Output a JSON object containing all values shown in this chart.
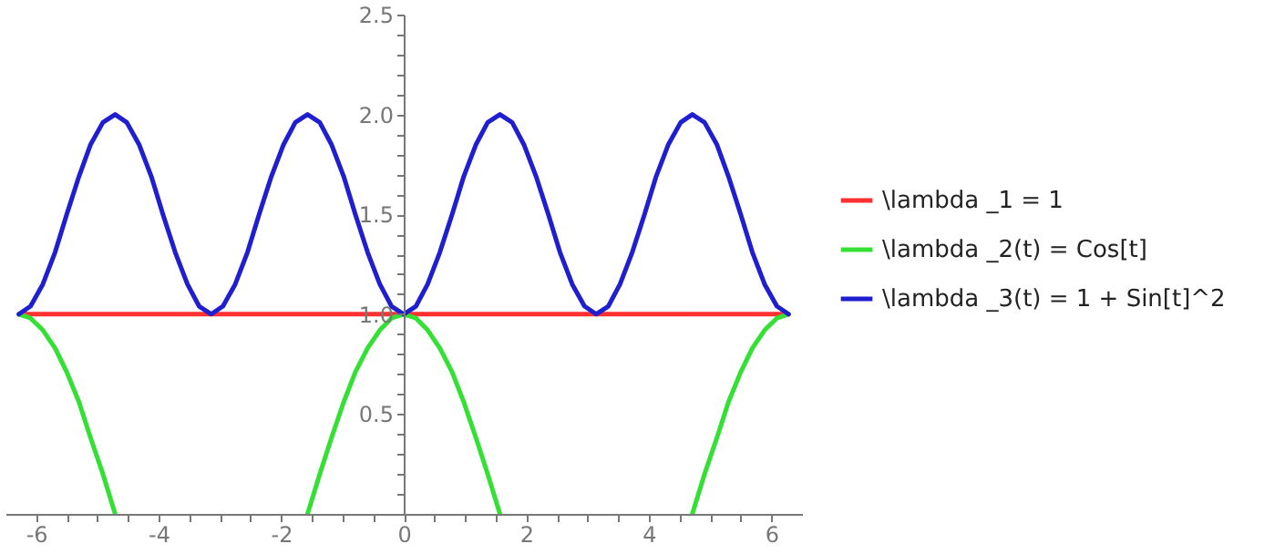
{
  "chart_data": {
    "type": "line",
    "legend": "right",
    "line_style": "solid",
    "marker": "none",
    "grid": false,
    "xlim": [
      -6.5,
      6.5
    ],
    "ylim": [
      0,
      2.5
    ],
    "xticks": [
      -6,
      {
        "value": -5.5,
        "label": null
      },
      {
        "value": -5,
        "label": null
      },
      {
        "value": -4.5,
        "label": null
      },
      -4,
      {
        "value": -3.5,
        "label": null
      },
      {
        "value": -3,
        "label": null
      },
      {
        "value": -2.5,
        "label": null
      },
      -2,
      {
        "value": -1.5,
        "label": null
      },
      {
        "value": -1,
        "label": null
      },
      {
        "value": -0.5,
        "label": null
      },
      0,
      {
        "value": 0.5,
        "label": null
      },
      {
        "value": 1,
        "label": null
      },
      {
        "value": 1.5,
        "label": null
      },
      2,
      {
        "value": 2.5,
        "label": null
      },
      {
        "value": 3,
        "label": null
      },
      {
        "value": 3.5,
        "label": null
      },
      4,
      {
        "value": 4.5,
        "label": null
      },
      {
        "value": 5,
        "label": null
      },
      {
        "value": 5.5,
        "label": null
      },
      6
    ],
    "yticks": [
      {
        "value": 0.1,
        "label": null
      },
      {
        "value": 0.2,
        "label": null
      },
      {
        "value": 0.3,
        "label": null
      },
      {
        "value": 0.4,
        "label": null
      },
      {
        "value": 0.5,
        "label": "0.5"
      },
      {
        "value": 0.6,
        "label": null
      },
      {
        "value": 0.7,
        "label": null
      },
      {
        "value": 0.8,
        "label": null
      },
      {
        "value": 0.9,
        "label": null
      },
      {
        "value": 1,
        "label": "1.0"
      },
      {
        "value": 1.1,
        "label": null
      },
      {
        "value": 1.2,
        "label": null
      },
      {
        "value": 1.3,
        "label": null
      },
      {
        "value": 1.4,
        "label": null
      },
      {
        "value": 1.5,
        "label": "1.5"
      },
      {
        "value": 1.6,
        "label": null
      },
      {
        "value": 1.7,
        "label": null
      },
      {
        "value": 1.8,
        "label": null
      },
      {
        "value": 1.9,
        "label": null
      },
      {
        "value": 2,
        "label": "2.0"
      },
      {
        "value": 2.1,
        "label": null
      },
      {
        "value": 2.2,
        "label": null
      },
      {
        "value": 2.3,
        "label": null
      },
      {
        "value": 2.4,
        "label": null
      },
      {
        "value": 2.5,
        "label": "2.5"
      }
    ],
    "x": [
      -6.28,
      -6.09,
      -5.89,
      -5.69,
      -5.5,
      -5.3,
      -5.11,
      -4.91,
      -4.71,
      -4.52,
      -4.32,
      -4.12,
      -3.93,
      -3.73,
      -3.53,
      -3.34,
      -3.14,
      -2.95,
      -2.75,
      -2.55,
      -2.36,
      -2.16,
      -1.96,
      -1.77,
      -1.57,
      -1.37,
      -1.18,
      -0.98,
      -0.79,
      -0.59,
      -0.39,
      -0.2,
      0,
      0.2,
      0.39,
      0.59,
      0.79,
      0.98,
      1.18,
      1.37,
      1.57,
      1.77,
      1.96,
      2.16,
      2.36,
      2.55,
      2.75,
      2.95,
      3.14,
      3.34,
      3.53,
      3.73,
      3.93,
      4.12,
      4.32,
      4.52,
      4.71,
      4.91,
      5.11,
      5.3,
      5.5,
      5.69,
      5.89,
      6.09,
      6.28
    ],
    "series": [
      {
        "name": "\\lambda _1 = 1",
        "color": "#ff3030",
        "x": [
          -6.28,
          6.28
        ],
        "values": [
          1,
          1
        ]
      },
      {
        "name": "\\lambda _2(t) = Cos[t]",
        "color": "#33e033",
        "values": [
          1,
          0.98,
          0.92,
          0.83,
          0.71,
          0.56,
          0.38,
          0.2,
          0,
          null,
          null,
          null,
          null,
          null,
          null,
          null,
          null,
          null,
          null,
          null,
          null,
          null,
          null,
          null,
          0,
          0.2,
          0.38,
          0.56,
          0.71,
          0.83,
          0.92,
          0.98,
          1,
          0.98,
          0.92,
          0.83,
          0.71,
          0.56,
          0.38,
          0.2,
          0,
          null,
          null,
          null,
          null,
          null,
          null,
          null,
          null,
          null,
          null,
          null,
          null,
          null,
          null,
          null,
          0,
          0.2,
          0.38,
          0.56,
          0.71,
          0.83,
          0.92,
          0.98,
          1
        ]
      },
      {
        "name": "\\lambda _3(t) = 1 + Sin[t]^2",
        "color": "#1f1fd0",
        "values": [
          1,
          1.04,
          1.15,
          1.31,
          1.5,
          1.69,
          1.85,
          1.96,
          2,
          1.96,
          1.85,
          1.69,
          1.5,
          1.31,
          1.15,
          1.04,
          1,
          1.04,
          1.15,
          1.31,
          1.5,
          1.69,
          1.85,
          1.96,
          2,
          1.96,
          1.85,
          1.69,
          1.5,
          1.31,
          1.15,
          1.04,
          1,
          1.04,
          1.15,
          1.31,
          1.5,
          1.69,
          1.85,
          1.96,
          2,
          1.96,
          1.85,
          1.69,
          1.5,
          1.31,
          1.15,
          1.04,
          1,
          1.04,
          1.15,
          1.31,
          1.5,
          1.69,
          1.85,
          1.96,
          2,
          1.96,
          1.85,
          1.69,
          1.5,
          1.31,
          1.15,
          1.04,
          1
        ]
      }
    ]
  }
}
